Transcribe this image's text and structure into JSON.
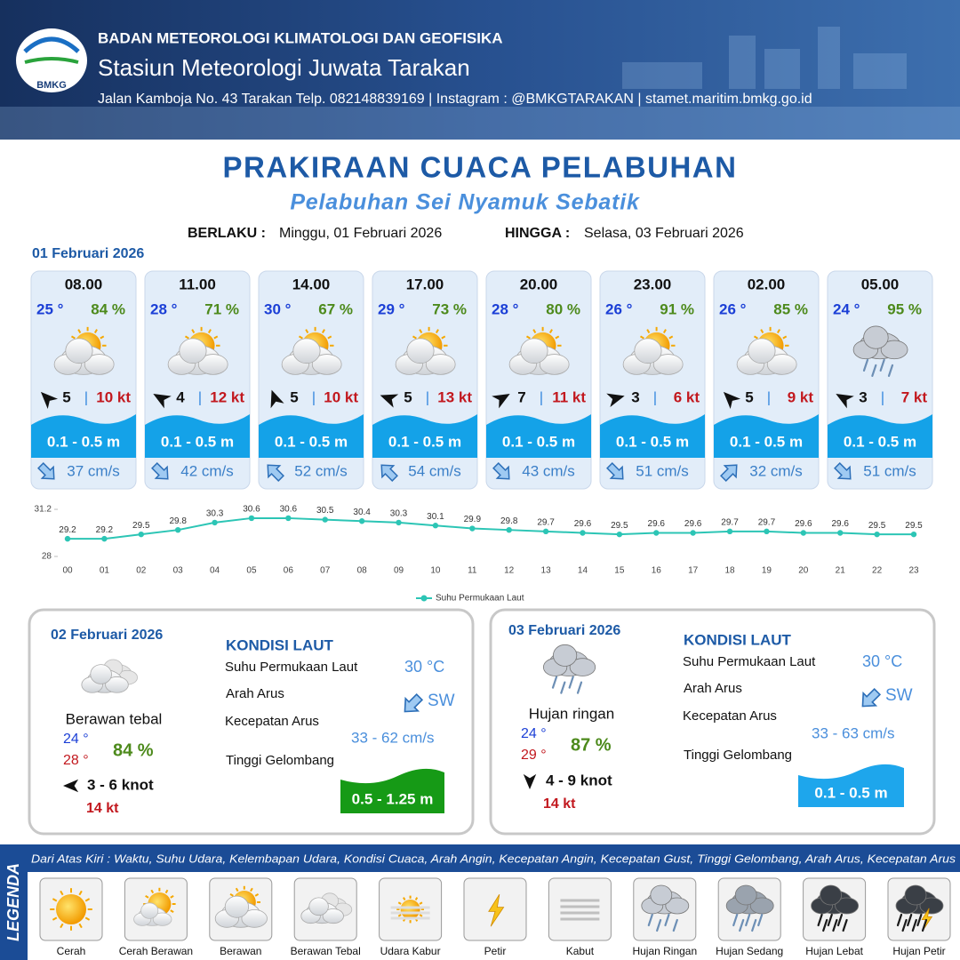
{
  "header": {
    "logo": "BMKG",
    "organization": "BADAN METEOROLOGI KLIMATOLOGI DAN GEOFISIKA",
    "station": "Stasiun Meteorologi Juwata Tarakan",
    "address": "Jalan Kamboja No. 43 Tarakan  Telp. 082148839169 | Instagram : @BMKGTARAKAN | stamet.maritim.bmkg.go.id"
  },
  "title": "PRAKIRAAN CUACA PELABUHAN",
  "subtitle": "Pelabuhan Sei Nyamuk Sebatik",
  "validity": {
    "from_label": "BERLAKU :",
    "from": "Minggu, 01 Februari 2026",
    "to_label": "HINGGA :",
    "to": "Selasa, 03 Februari 2026"
  },
  "day1": {
    "date": "01 Februari 2026",
    "separator": "|",
    "slots": [
      {
        "time": "08.00",
        "temp": "25 °",
        "humidity": "84 %",
        "icon": "Berawan",
        "wind_deg": 315,
        "wind": "5",
        "gust": "10 kt",
        "wave": "0.1 - 0.5 m",
        "current_deg": 135,
        "current": "37 cm/s"
      },
      {
        "time": "11.00",
        "temp": "28 °",
        "humidity": "71 %",
        "icon": "Berawan",
        "wind_deg": 300,
        "wind": "4",
        "gust": "12 kt",
        "wave": "0.1 - 0.5 m",
        "current_deg": 135,
        "current": "42 cm/s"
      },
      {
        "time": "14.00",
        "temp": "30 °",
        "humidity": "67 %",
        "icon": "Berawan",
        "wind_deg": 340,
        "wind": "5",
        "gust": "10 kt",
        "wave": "0.1 - 0.5 m",
        "current_deg": 315,
        "current": "52 cm/s"
      },
      {
        "time": "17.00",
        "temp": "29 °",
        "humidity": "73 %",
        "icon": "Berawan",
        "wind_deg": 290,
        "wind": "5",
        "gust": "13 kt",
        "wave": "0.1 - 0.5 m",
        "current_deg": 315,
        "current": "54 cm/s"
      },
      {
        "time": "20.00",
        "temp": "28 °",
        "humidity": "80 %",
        "icon": "Berawan",
        "wind_deg": 60,
        "wind": "7",
        "gust": "11 kt",
        "wave": "0.1 - 0.5 m",
        "current_deg": 135,
        "current": "43 cm/s"
      },
      {
        "time": "23.00",
        "temp": "26 °",
        "humidity": "91 %",
        "icon": "Berawan",
        "wind_deg": 75,
        "wind": "3",
        "gust": "6 kt",
        "wave": "0.1 - 0.5 m",
        "current_deg": 135,
        "current": "51 cm/s"
      },
      {
        "time": "02.00",
        "temp": "26 °",
        "humidity": "85 %",
        "icon": "Berawan",
        "wind_deg": 315,
        "wind": "5",
        "gust": "9 kt",
        "wave": "0.1 - 0.5 m",
        "current_deg": 45,
        "current": "32 cm/s"
      },
      {
        "time": "05.00",
        "temp": "24 °",
        "humidity": "95 %",
        "icon": "Hujan Ringan",
        "wind_deg": 300,
        "wind": "3",
        "gust": "7 kt",
        "wave": "0.1 - 0.5 m",
        "current_deg": 135,
        "current": "51 cm/s"
      }
    ]
  },
  "chart_data": {
    "type": "line",
    "categories": [
      "00",
      "01",
      "02",
      "03",
      "04",
      "05",
      "06",
      "07",
      "08",
      "09",
      "10",
      "11",
      "12",
      "13",
      "14",
      "15",
      "16",
      "17",
      "18",
      "19",
      "20",
      "21",
      "22",
      "23"
    ],
    "series": [
      {
        "name": "Suhu Permukaan Laut",
        "color": "#2cc5b5",
        "values": [
          29.2,
          29.2,
          29.5,
          29.8,
          30.3,
          30.6,
          30.6,
          30.5,
          30.4,
          30.3,
          30.1,
          29.9,
          29.8,
          29.7,
          29.6,
          29.5,
          29.6,
          29.6,
          29.7,
          29.7,
          29.6,
          29.6,
          29.5,
          29.5
        ]
      }
    ],
    "ylim": [
      28,
      31.2
    ],
    "yticks": [
      28,
      31.2
    ],
    "grid": false
  },
  "day2": {
    "date": "02 Februari 2026",
    "icon": "Berawan Tebal",
    "condition": "Berawan tebal",
    "temp_min": "24 °",
    "temp_max": "28 °",
    "humidity": "84 %",
    "wind_deg": 270,
    "wind": "3  - 6 knot",
    "gust": "14 kt",
    "sea_title": "KONDISI LAUT",
    "sst_label": "Suhu Permukaan Laut",
    "sst": "30 °C",
    "current_dir_label": "Arah Arus",
    "current_deg": 225,
    "current_dir": "SW",
    "current_speed_label": "Kecepatan Arus",
    "current_speed": "33 - 62 cm/s",
    "wave_label": "Tinggi Gelombang",
    "wave": "0.5 - 1.25 m",
    "wave_color": "#169a16"
  },
  "day3": {
    "date": "03 Februari 2026",
    "icon": "Hujan Ringan",
    "condition": "Hujan ringan",
    "temp_min": "24 °",
    "temp_max": "29 °",
    "humidity": "87 %",
    "wind_deg": 180,
    "wind": "4 - 9 knot",
    "gust": "14 kt",
    "sea_title": "KONDISI LAUT",
    "sst_label": "Suhu Permukaan Laut",
    "sst": "30 °C",
    "current_dir_label": "Arah Arus",
    "current_deg": 225,
    "current_dir": "SW",
    "current_speed_label": "Kecepatan Arus",
    "current_speed": "33 - 63 cm/s",
    "wave_label": "Tinggi Gelombang",
    "wave": "0.1 - 0.5 m",
    "wave_color": "#1ea6ec"
  },
  "legend": {
    "title": "LEGENDA",
    "note": "Dari Atas Kiri : Waktu, Suhu Udara, Kelembapan Udara, Kondisi Cuaca, Arah Angin, Kecepatan Angin, Kecepatan Gust, Tinggi Gelombang, Arah Arus, Kecepatan Arus",
    "items": [
      "Cerah",
      "Cerah Berawan",
      "Berawan",
      "Berawan Tebal",
      "Udara Kabur",
      "Petir",
      "Kabut",
      "Hujan Ringan",
      "Hujan Sedang",
      "Hujan Lebat",
      "Hujan Petir"
    ]
  }
}
